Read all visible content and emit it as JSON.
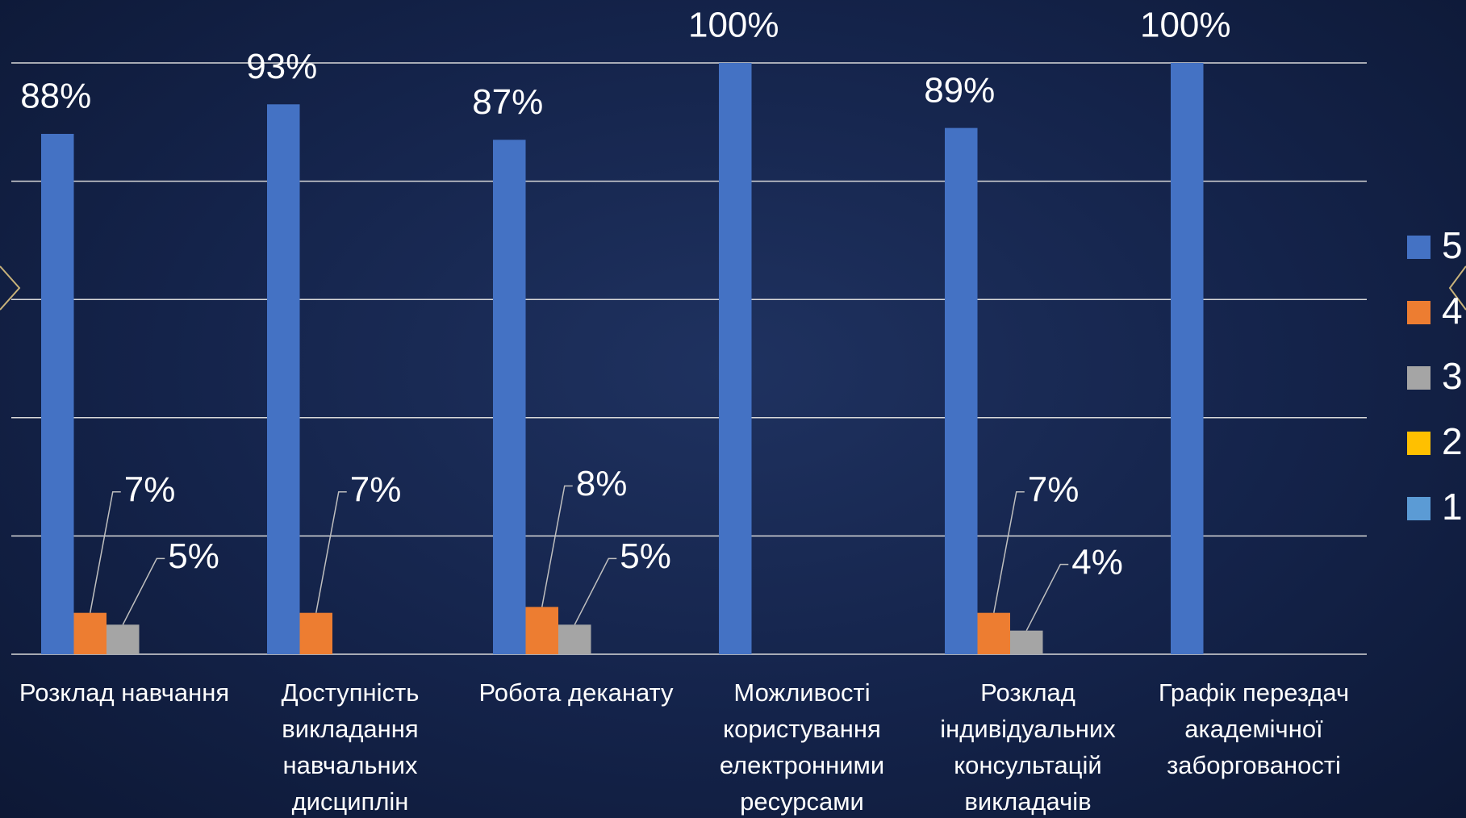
{
  "chart_data": {
    "type": "bar",
    "categories": [
      "Розклад навчання",
      "Доступність викладання навчальних дисциплін",
      "Робота деканату",
      "Можливості користування електронними ресурсами",
      "Розклад індивідуальних консультацій викладачів",
      "Графік перездач академічної заборгованості"
    ],
    "series": [
      {
        "name": "5",
        "color": "#4472c4",
        "values": [
          88,
          93,
          87,
          100,
          89,
          100
        ],
        "value_labels": [
          "88%",
          "93%",
          "87%",
          "100%",
          "89%",
          "100%"
        ]
      },
      {
        "name": "4",
        "color": "#ed7d31",
        "values": [
          7,
          7,
          8,
          0,
          7,
          0
        ],
        "value_labels": [
          "7%",
          "7%",
          "8%",
          null,
          "7%",
          null
        ]
      },
      {
        "name": "3",
        "color": "#a5a5a5",
        "values": [
          5,
          0,
          5,
          0,
          4,
          0
        ],
        "value_labels": [
          "5%",
          null,
          "5%",
          null,
          "4%",
          null
        ]
      },
      {
        "name": "2",
        "color": "#ffc000",
        "values": [
          0,
          0,
          0,
          0,
          0,
          0
        ]
      },
      {
        "name": "1",
        "color": "#5b9bd5",
        "values": [
          0,
          0,
          0,
          0,
          0,
          0
        ]
      }
    ],
    "ylim": [
      0,
      100
    ],
    "yticks": [
      0,
      20,
      40,
      60,
      80,
      100
    ],
    "grid": true,
    "legend": "right"
  }
}
